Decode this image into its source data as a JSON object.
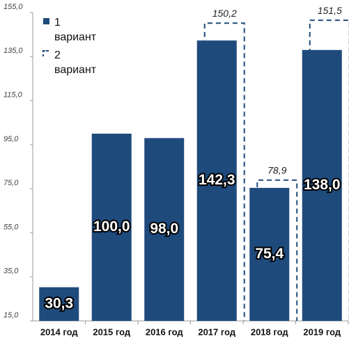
{
  "chart_data": {
    "type": "bar",
    "categories": [
      "2014 год",
      "2015 год",
      "2016 год",
      "2017 год",
      "2018 год",
      "2019 год"
    ],
    "series": [
      {
        "name": "1 вариант",
        "color": "#1f4a7c",
        "style": "solid",
        "values": [
          30.3,
          100.0,
          98.0,
          142.3,
          75.4,
          138.0
        ],
        "value_labels": [
          "30,3",
          "100,0",
          "98,0",
          "142,3",
          "75,4",
          "138,0"
        ]
      },
      {
        "name": "2 вариант",
        "color": "#1f4a7c",
        "style": "dashed",
        "values": [
          null,
          null,
          null,
          150.2,
          78.9,
          151.5
        ],
        "value_labels": [
          null,
          null,
          null,
          "150,2",
          "78,9",
          "151,5"
        ]
      }
    ],
    "ylim": [
      15,
      155
    ],
    "yticks": [
      {
        "value": 15,
        "label": "15,0"
      },
      {
        "value": 35,
        "label": "35,0"
      },
      {
        "value": 55,
        "label": "55,0"
      },
      {
        "value": 75,
        "label": "75,0"
      },
      {
        "value": 95,
        "label": "95,0"
      },
      {
        "value": 115,
        "label": "115,0"
      },
      {
        "value": 135,
        "label": "135,0"
      },
      {
        "value": 155,
        "label": "155,0"
      }
    ],
    "grid": false,
    "legend": "top-left"
  }
}
